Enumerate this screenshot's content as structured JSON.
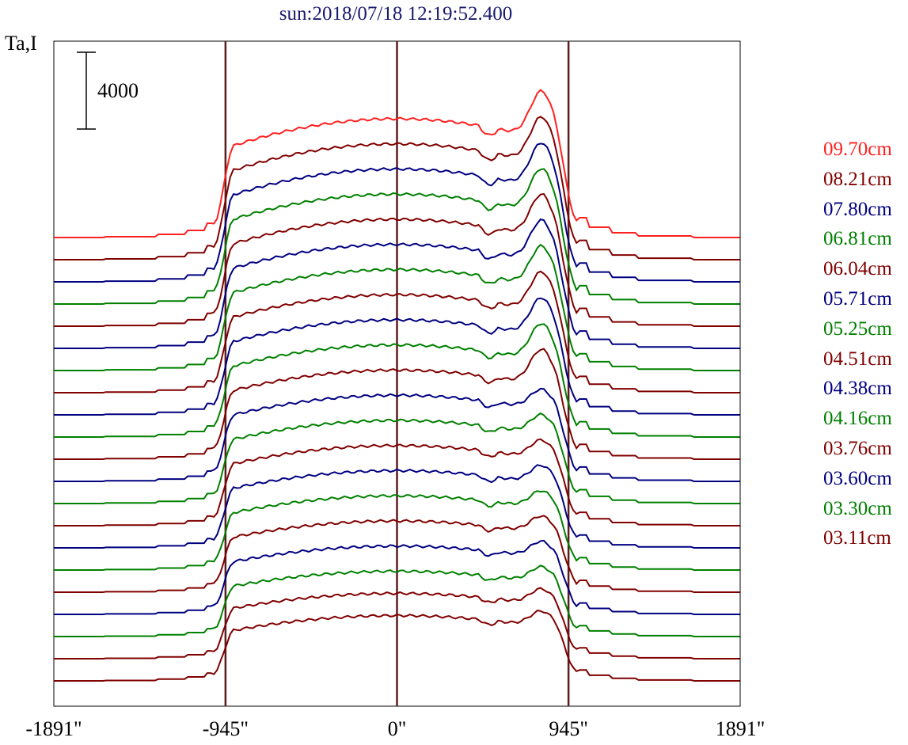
{
  "title": "sun:2018/07/18 12:19:52.400",
  "y_axis_label": "Ta,I",
  "scale_bar_label": "4000",
  "chart_data": {
    "type": "line",
    "title": "sun:2018/07/18 12:19:52.400",
    "xlabel": "",
    "ylabel": "Ta,I",
    "x_ticks": [
      {
        "value": -1891,
        "label": "-1891\""
      },
      {
        "value": -945,
        "label": "-945\""
      },
      {
        "value": 0,
        "label": "0\""
      },
      {
        "value": 945,
        "label": "945\""
      },
      {
        "value": 1891,
        "label": "1891\""
      }
    ],
    "xlim": [
      -1891,
      1891
    ],
    "vertical_markers": [
      -945,
      0,
      945
    ],
    "scale_bar_value": 4000,
    "stacked_offset": true,
    "grid": false,
    "legend_position": "right",
    "series": [
      {
        "name": "09.70cm",
        "color": "#ff2020"
      },
      {
        "name": "08.21cm",
        "color": "#800000"
      },
      {
        "name": "07.80cm",
        "color": "#000080"
      },
      {
        "name": "06.81cm",
        "color": "#008000"
      },
      {
        "name": "06.04cm",
        "color": "#800000"
      },
      {
        "name": "05.71cm",
        "color": "#000080"
      },
      {
        "name": "05.25cm",
        "color": "#008000"
      },
      {
        "name": "04.51cm",
        "color": "#800000"
      },
      {
        "name": "04.38cm",
        "color": "#000080"
      },
      {
        "name": "04.16cm",
        "color": "#008000"
      },
      {
        "name": "03.76cm",
        "color": "#800000"
      },
      {
        "name": "03.60cm",
        "color": "#000080"
      },
      {
        "name": "03.30cm",
        "color": "#008000"
      },
      {
        "name": "03.11cm",
        "color": "#800000"
      },
      {
        "color": "#000080"
      },
      {
        "color": "#008000"
      },
      {
        "color": "#800000"
      },
      {
        "color": "#000080"
      },
      {
        "color": "#008000"
      },
      {
        "color": "#800000"
      },
      {
        "color": "#800000"
      }
    ]
  }
}
